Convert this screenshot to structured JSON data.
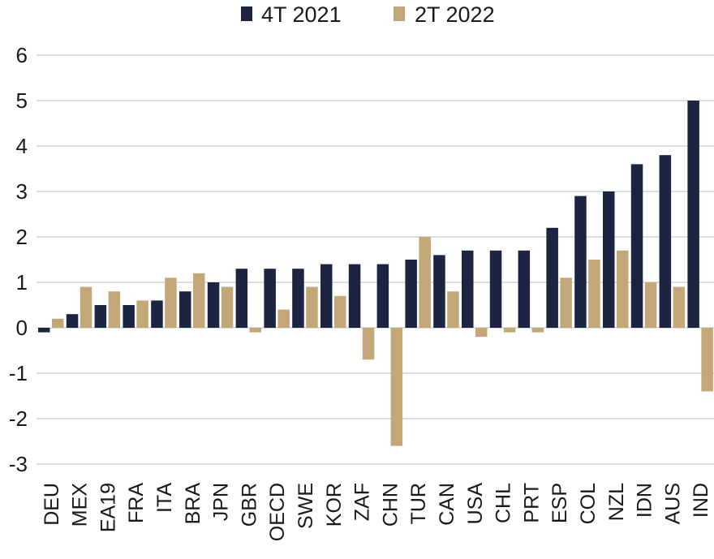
{
  "chart_data": {
    "type": "bar",
    "title": "",
    "xlabel": "",
    "ylabel": "",
    "ylim": [
      -3,
      6
    ],
    "yticks": [
      -3,
      -2,
      -1,
      0,
      1,
      2,
      3,
      4,
      5,
      6
    ],
    "ytick_labels": [
      "-3",
      "-2",
      "-1",
      "0",
      "1",
      "2",
      "3",
      "4",
      "5",
      "6"
    ],
    "grid": true,
    "legend_position": "top-center",
    "categories": [
      "DEU",
      "MEX",
      "EA19",
      "FRA",
      "ITA",
      "BRA",
      "JPN",
      "GBR",
      "OECD",
      "SWE",
      "KOR",
      "ZAF",
      "CHN",
      "TUR",
      "CAN",
      "USA",
      "CHL",
      "PRT",
      "ESP",
      "COL",
      "NZL",
      "IDN",
      "AUS",
      "IND"
    ],
    "series": [
      {
        "name": "4T 2021",
        "color": "#1b2440",
        "values": [
          -0.1,
          0.3,
          0.5,
          0.5,
          0.6,
          0.8,
          1.0,
          1.3,
          1.3,
          1.3,
          1.4,
          1.4,
          1.4,
          1.5,
          1.6,
          1.7,
          1.7,
          1.7,
          2.2,
          2.9,
          3.0,
          3.6,
          3.8,
          5.0
        ]
      },
      {
        "name": "2T 2022",
        "color": "#c4a778",
        "values": [
          0.2,
          0.9,
          0.8,
          0.6,
          1.1,
          1.2,
          0.9,
          -0.1,
          0.4,
          0.9,
          0.7,
          -0.7,
          -2.6,
          2.0,
          0.8,
          -0.2,
          -0.1,
          -0.1,
          1.1,
          1.5,
          1.7,
          1.0,
          0.9,
          -1.4
        ]
      }
    ]
  }
}
